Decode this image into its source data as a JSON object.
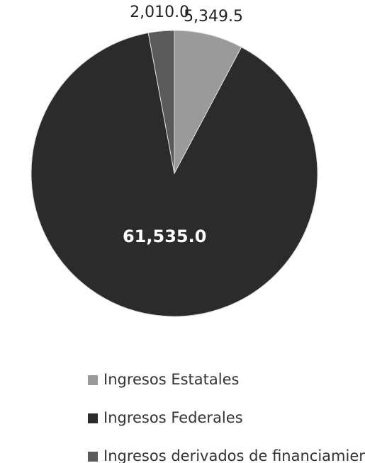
{
  "chart_data": {
    "type": "pie",
    "categories": [
      "Ingresos Estatales",
      "Ingresos Federales",
      "Ingresos derivados de financiamiento"
    ],
    "values": [
      5349.5,
      61535.0,
      2010.0
    ],
    "value_labels": [
      "5,349.5",
      "61,535.0",
      "2,010.0"
    ],
    "colors": [
      "#9a9a9a",
      "#2b2b2b",
      "#5a5a5a"
    ]
  }
}
